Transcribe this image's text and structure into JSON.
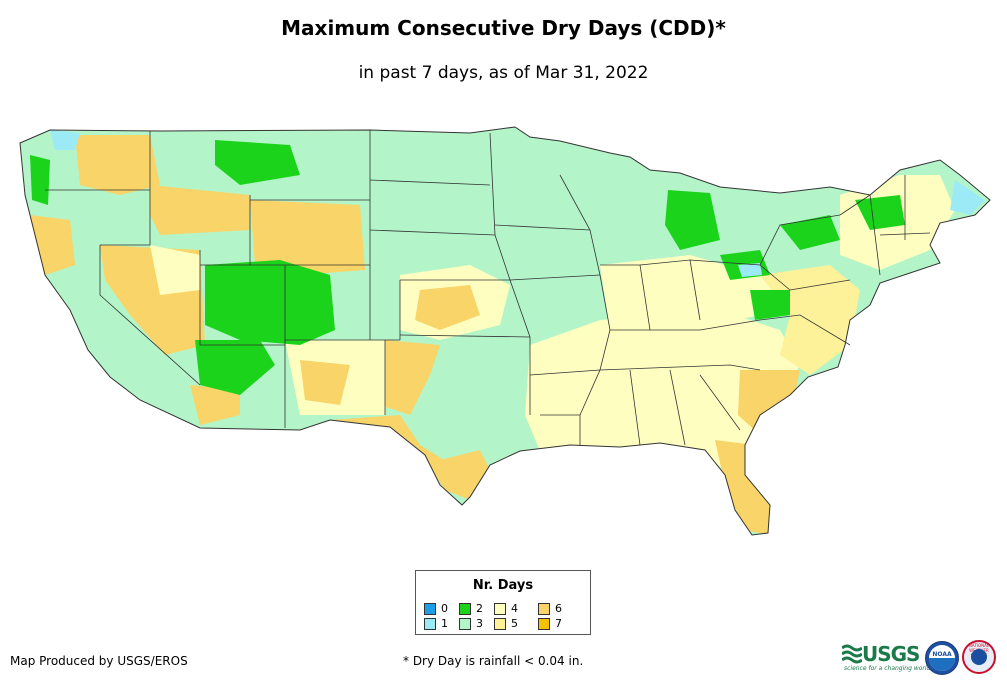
{
  "title": "Maximum Consecutive Dry Days (CDD)*",
  "subtitle": "in past 7 days, as of Mar 31, 2022",
  "legend": {
    "title": "Nr. Days",
    "items": [
      {
        "label": "0",
        "color": "#1f9ee8"
      },
      {
        "label": "1",
        "color": "#9beaf6"
      },
      {
        "label": "2",
        "color": "#1cd31c"
      },
      {
        "label": "3",
        "color": "#b3f5c9"
      },
      {
        "label": "4",
        "color": "#fefec0"
      },
      {
        "label": "5",
        "color": "#fdf19a"
      },
      {
        "label": "6",
        "color": "#f8d469"
      },
      {
        "label": "7",
        "color": "#f5c100"
      }
    ]
  },
  "credit": "Map Produced by USGS/EROS",
  "footnote": "* Dry Day is rainfall < 0.04 in.",
  "logos": {
    "usgs": "USGS",
    "usgs_tagline": "science for a changing world",
    "noaa": "NOAA",
    "nws": "NATIONAL WEATHER SERVICE"
  },
  "map_colors": {
    "outline": "#333333",
    "water": "#ffffff"
  }
}
